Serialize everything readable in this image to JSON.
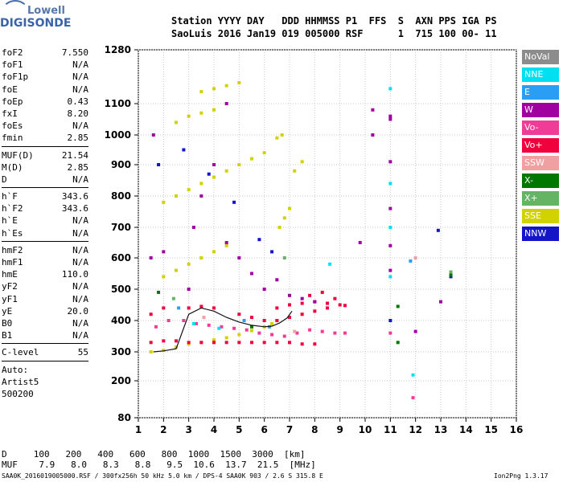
{
  "logo": {
    "line1": "Lowell",
    "line2": "DIGISONDE"
  },
  "header": {
    "row1": "Station YYYY DAY   DDD HHMMSS P1  FFS  S  AXN PPS IGA PS",
    "row2": "SaoLuis 2016 Jan19 019 005000 RSF      1  715 100 00- 11"
  },
  "params": {
    "group1": [
      {
        "label": "foF2",
        "value": "7.550"
      },
      {
        "label": "foF1",
        "value": "N/A"
      },
      {
        "label": "foF1p",
        "value": "N/A"
      },
      {
        "label": "foE",
        "value": "N/A"
      },
      {
        "label": "foEp",
        "value": "0.43"
      },
      {
        "label": "fxI",
        "value": "8.20"
      },
      {
        "label": "foEs",
        "value": "N/A"
      },
      {
        "label": "fmin",
        "value": "2.85"
      }
    ],
    "group2": [
      {
        "label": "MUF(D)",
        "value": "21.54"
      },
      {
        "label": "M(D)",
        "value": "2.85"
      },
      {
        "label": "D",
        "value": "N/A"
      }
    ],
    "group3": [
      {
        "label": "h`F",
        "value": "343.6"
      },
      {
        "label": "h`F2",
        "value": "343.6"
      },
      {
        "label": "h`E",
        "value": "N/A"
      },
      {
        "label": "h`Es",
        "value": "N/A"
      }
    ],
    "group4": [
      {
        "label": "hmF2",
        "value": "N/A"
      },
      {
        "label": "hmF1",
        "value": "N/A"
      },
      {
        "label": "hmE",
        "value": "110.0"
      },
      {
        "label": "yF2",
        "value": "N/A"
      },
      {
        "label": "yF1",
        "value": "N/A"
      },
      {
        "label": "yE",
        "value": "20.0"
      },
      {
        "label": "B0",
        "value": "N/A"
      },
      {
        "label": "B1",
        "value": "N/A"
      }
    ],
    "group5": [
      {
        "label": "C-level",
        "value": "55"
      }
    ],
    "auto": [
      "Auto:",
      "Artist5",
      "500200"
    ]
  },
  "legend": [
    {
      "label": "NoVal",
      "color": "#8c8c8c"
    },
    {
      "label": "NNE",
      "color": "#00e0f0"
    },
    {
      "label": "E",
      "color": "#2a9df4"
    },
    {
      "label": "W",
      "color": "#a000a0"
    },
    {
      "label": "Vo-",
      "color": "#f03c96"
    },
    {
      "label": "Vo+",
      "color": "#f0003c"
    },
    {
      "label": "SSW",
      "color": "#f0a0a0"
    },
    {
      "label": "X-",
      "color": "#007800"
    },
    {
      "label": "X+",
      "color": "#64b464"
    },
    {
      "label": "SSE",
      "color": "#d2d200"
    },
    {
      "label": "NNW",
      "color": "#1414c8"
    }
  ],
  "chart_data": {
    "type": "scatter",
    "xlim": [
      1,
      16
    ],
    "ylim": [
      80,
      1280
    ],
    "xticks": [
      1,
      2,
      3,
      4,
      5,
      6,
      7,
      8,
      9,
      10,
      11,
      12,
      13,
      14,
      15,
      16
    ],
    "yticks": [
      80,
      200,
      300,
      400,
      500,
      600,
      700,
      800,
      900,
      1000,
      1100,
      1280
    ],
    "grid": true,
    "trace_curve": [
      [
        1.6,
        300
      ],
      [
        2.0,
        303
      ],
      [
        2.5,
        310
      ],
      [
        3.0,
        420
      ],
      [
        3.5,
        440
      ],
      [
        4.0,
        430
      ],
      [
        4.5,
        410
      ],
      [
        5.0,
        395
      ],
      [
        5.5,
        385
      ],
      [
        6.0,
        380
      ],
      [
        6.3,
        382
      ],
      [
        6.6,
        392
      ],
      [
        6.9,
        408
      ],
      [
        7.1,
        430
      ]
    ],
    "series": [
      {
        "color": "#d2d200",
        "points": [
          [
            1.5,
            300
          ],
          [
            2.0,
            305
          ],
          [
            2.5,
            315
          ],
          [
            3.0,
            325
          ],
          [
            3.5,
            330
          ],
          [
            4.0,
            338
          ],
          [
            4.5,
            345
          ],
          [
            5.0,
            355
          ],
          [
            5.5,
            368
          ],
          [
            6.0,
            380
          ],
          [
            6.3,
            390
          ],
          [
            6.5,
            400
          ],
          [
            2.0,
            540
          ],
          [
            2.5,
            560
          ],
          [
            3.0,
            580
          ],
          [
            3.5,
            600
          ],
          [
            4.0,
            620
          ],
          [
            4.5,
            640
          ],
          [
            2.0,
            780
          ],
          [
            2.5,
            800
          ],
          [
            3.0,
            820
          ],
          [
            3.5,
            840
          ],
          [
            4.0,
            860
          ],
          [
            4.5,
            880
          ],
          [
            5.0,
            900
          ],
          [
            5.5,
            920
          ],
          [
            6.0,
            940
          ],
          [
            3.5,
            1140
          ],
          [
            4.0,
            1150
          ],
          [
            4.5,
            1160
          ],
          [
            5.0,
            1170
          ],
          [
            2.5,
            1040
          ],
          [
            3.0,
            1060
          ],
          [
            3.5,
            1070
          ],
          [
            4.0,
            1080
          ],
          [
            6.6,
            700
          ],
          [
            6.8,
            730
          ],
          [
            7.0,
            760
          ],
          [
            7.2,
            880
          ],
          [
            7.5,
            910
          ],
          [
            6.5,
            990
          ],
          [
            6.7,
            1000
          ]
        ]
      },
      {
        "color": "#f0003c",
        "points": [
          [
            1.5,
            330
          ],
          [
            2.0,
            335
          ],
          [
            2.5,
            335
          ],
          [
            3.0,
            330
          ],
          [
            3.5,
            330
          ],
          [
            4.0,
            330
          ],
          [
            4.5,
            330
          ],
          [
            5.0,
            330
          ],
          [
            5.5,
            330
          ],
          [
            6.0,
            330
          ],
          [
            6.5,
            330
          ],
          [
            7.0,
            330
          ],
          [
            7.5,
            325
          ],
          [
            8.0,
            325
          ],
          [
            6.5,
            440
          ],
          [
            7.0,
            450
          ],
          [
            7.5,
            455
          ],
          [
            8.0,
            460
          ],
          [
            8.5,
            455
          ],
          [
            9.0,
            450
          ],
          [
            6.5,
            400
          ],
          [
            7.0,
            410
          ],
          [
            7.5,
            420
          ],
          [
            8.0,
            430
          ],
          [
            8.5,
            440
          ],
          [
            3.0,
            440
          ],
          [
            3.5,
            445
          ],
          [
            4.0,
            440
          ],
          [
            2.0,
            440
          ],
          [
            5.0,
            420
          ],
          [
            5.5,
            410
          ],
          [
            6.0,
            400
          ],
          [
            1.5,
            420
          ],
          [
            7.8,
            480
          ],
          [
            8.3,
            490
          ],
          [
            8.8,
            470
          ],
          [
            9.2,
            448
          ]
        ]
      },
      {
        "color": "#a000a0",
        "points": [
          [
            1.5,
            600
          ],
          [
            2.0,
            620
          ],
          [
            3.0,
            500
          ],
          [
            3.2,
            700
          ],
          [
            3.5,
            800
          ],
          [
            4.0,
            900
          ],
          [
            4.5,
            650
          ],
          [
            5.0,
            600
          ],
          [
            5.5,
            550
          ],
          [
            6.0,
            500
          ],
          [
            6.5,
            530
          ],
          [
            7.0,
            480
          ],
          [
            7.5,
            470
          ],
          [
            8.0,
            460
          ],
          [
            11.0,
            1050
          ],
          [
            11.0,
            1060
          ],
          [
            11.0,
            910
          ],
          [
            11.0,
            760
          ],
          [
            11.0,
            640
          ],
          [
            11.0,
            560
          ],
          [
            10.3,
            1000
          ],
          [
            10.3,
            1080
          ],
          [
            9.8,
            650
          ],
          [
            12.0,
            365
          ],
          [
            13.0,
            460
          ],
          [
            1.6,
            1000
          ],
          [
            4.5,
            1100
          ]
        ]
      },
      {
        "color": "#f03c96",
        "points": [
          [
            1.7,
            380
          ],
          [
            2.2,
            400
          ],
          [
            2.8,
            400
          ],
          [
            3.3,
            390
          ],
          [
            3.8,
            385
          ],
          [
            4.3,
            380
          ],
          [
            4.8,
            375
          ],
          [
            5.3,
            370
          ],
          [
            5.8,
            360
          ],
          [
            6.3,
            355
          ],
          [
            6.8,
            350
          ],
          [
            7.3,
            360
          ],
          [
            7.8,
            370
          ],
          [
            8.3,
            365
          ],
          [
            8.8,
            360
          ],
          [
            9.2,
            360
          ],
          [
            11.0,
            360
          ],
          [
            11.9,
            145
          ]
        ]
      },
      {
        "color": "#1414c8",
        "points": [
          [
            1.8,
            900
          ],
          [
            2.8,
            950
          ],
          [
            3.8,
            870
          ],
          [
            4.8,
            780
          ],
          [
            5.8,
            660
          ],
          [
            6.3,
            620
          ],
          [
            11.0,
            400
          ],
          [
            12.9,
            690
          ],
          [
            13.4,
            540
          ]
        ]
      },
      {
        "color": "#00e0f0",
        "points": [
          [
            3.2,
            390
          ],
          [
            4.2,
            375
          ],
          [
            11.0,
            1150
          ],
          [
            11.0,
            840
          ],
          [
            11.0,
            700
          ],
          [
            11.0,
            540
          ],
          [
            11.9,
            220
          ],
          [
            8.6,
            580
          ]
        ]
      },
      {
        "color": "#2a9df4",
        "points": [
          [
            2.6,
            440
          ],
          [
            5.2,
            400
          ],
          [
            6.2,
            380
          ],
          [
            11.8,
            590
          ]
        ]
      },
      {
        "color": "#007800",
        "points": [
          [
            1.8,
            490
          ],
          [
            5.5,
            380
          ],
          [
            11.3,
            330
          ],
          [
            11.3,
            445
          ],
          [
            13.4,
            545
          ]
        ]
      },
      {
        "color": "#64b464",
        "points": [
          [
            2.4,
            470
          ],
          [
            6.8,
            600
          ],
          [
            13.4,
            555
          ]
        ]
      },
      {
        "color": "#f0a0a0",
        "points": [
          [
            3.6,
            410
          ],
          [
            7.2,
            365
          ],
          [
            12.0,
            600
          ]
        ]
      }
    ]
  },
  "footer": {
    "row_d": "D     100   200   400   600   800  1000  1500  3000  [km]",
    "row_muf": "MUF    7.9   8.0   8.3   8.8   9.5  10.6  13.7  21.5  [MHz]",
    "filename": "SAA0K_2016019005000.RSF / 300fx256h 50 kHz 5.0 km / DPS-4 SAA0K 903 / 2.6 S 315.8 E",
    "version": "Ion2Png 1.3.17"
  }
}
